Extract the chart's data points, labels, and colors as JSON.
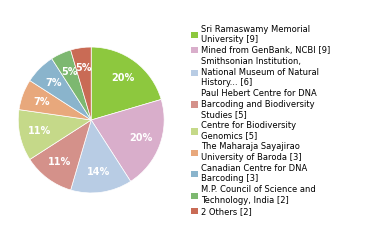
{
  "labels": [
    "Sri Ramaswamy Memorial\nUniversity [9]",
    "Mined from GenBank, NCBI [9]",
    "Smithsonian Institution,\nNational Museum of Natural\nHistory... [6]",
    "Paul Hebert Centre for DNA\nBarcoding and Biodiversity\nStudies [5]",
    "Centre for Biodiversity\nGenomics [5]",
    "The Maharaja Sayajirao\nUniversity of Baroda [3]",
    "Canadian Centre for DNA\nBarcoding [3]",
    "M.P. Council of Science and\nTechnology, India [2]",
    "2 Others [2]"
  ],
  "values": [
    9,
    9,
    6,
    5,
    5,
    3,
    3,
    2,
    2
  ],
  "colors": [
    "#8dc83e",
    "#d9aecb",
    "#b8cce4",
    "#d4918a",
    "#c5d989",
    "#e8a87c",
    "#8ab4cc",
    "#7db870",
    "#c96b55"
  ],
  "legend_colors": [
    "#8dc83e",
    "#d9aecb",
    "#b8cce4",
    "#d4918a",
    "#c5d989",
    "#e8a87c",
    "#8ab4cc",
    "#7db870",
    "#c96b55"
  ],
  "startangle": 90,
  "pctdistance": 0.72,
  "legend_fontsize": 6.0,
  "pct_fontsize": 7.0
}
